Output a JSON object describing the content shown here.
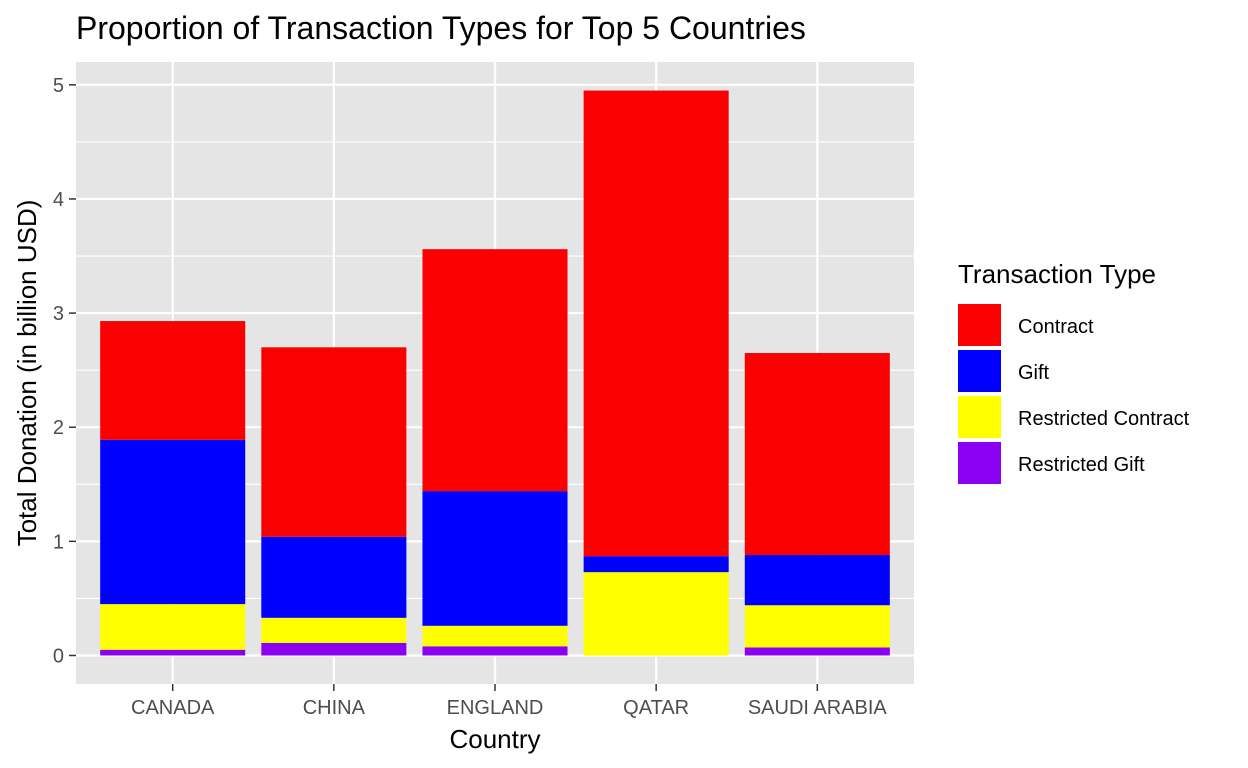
{
  "chart_data": {
    "type": "bar",
    "stacked": true,
    "title": "Proportion of Transaction Types for Top 5 Countries",
    "xlabel": "Country",
    "ylabel": "Total Donation (in billion USD)",
    "categories": [
      "CANADA",
      "CHINA",
      "ENGLAND",
      "QATAR",
      "SAUDI ARABIA"
    ],
    "ylim": [
      -0.25,
      5.2
    ],
    "yticks": [
      0,
      1,
      2,
      3,
      4,
      5
    ],
    "grid": true,
    "legend": {
      "title": "Transaction Type",
      "position": "right"
    },
    "series": [
      {
        "name": "Restricted Gift",
        "color": "#8B00F0",
        "values": [
          0.05,
          0.11,
          0.08,
          0.0,
          0.07
        ]
      },
      {
        "name": "Restricted Contract",
        "color": "#FFFF00",
        "values": [
          0.4,
          0.22,
          0.18,
          0.73,
          0.37
        ]
      },
      {
        "name": "Gift",
        "color": "#0000FF",
        "values": [
          1.44,
          0.71,
          1.18,
          0.14,
          0.44
        ]
      },
      {
        "name": "Contract",
        "color": "#FA0000",
        "values": [
          1.04,
          1.66,
          2.12,
          4.08,
          1.77
        ]
      }
    ],
    "legend_order": [
      "Contract",
      "Gift",
      "Restricted Contract",
      "Restricted Gift"
    ],
    "panel_color": "#E5E5E5",
    "grid_color": "#FFFFFF"
  }
}
